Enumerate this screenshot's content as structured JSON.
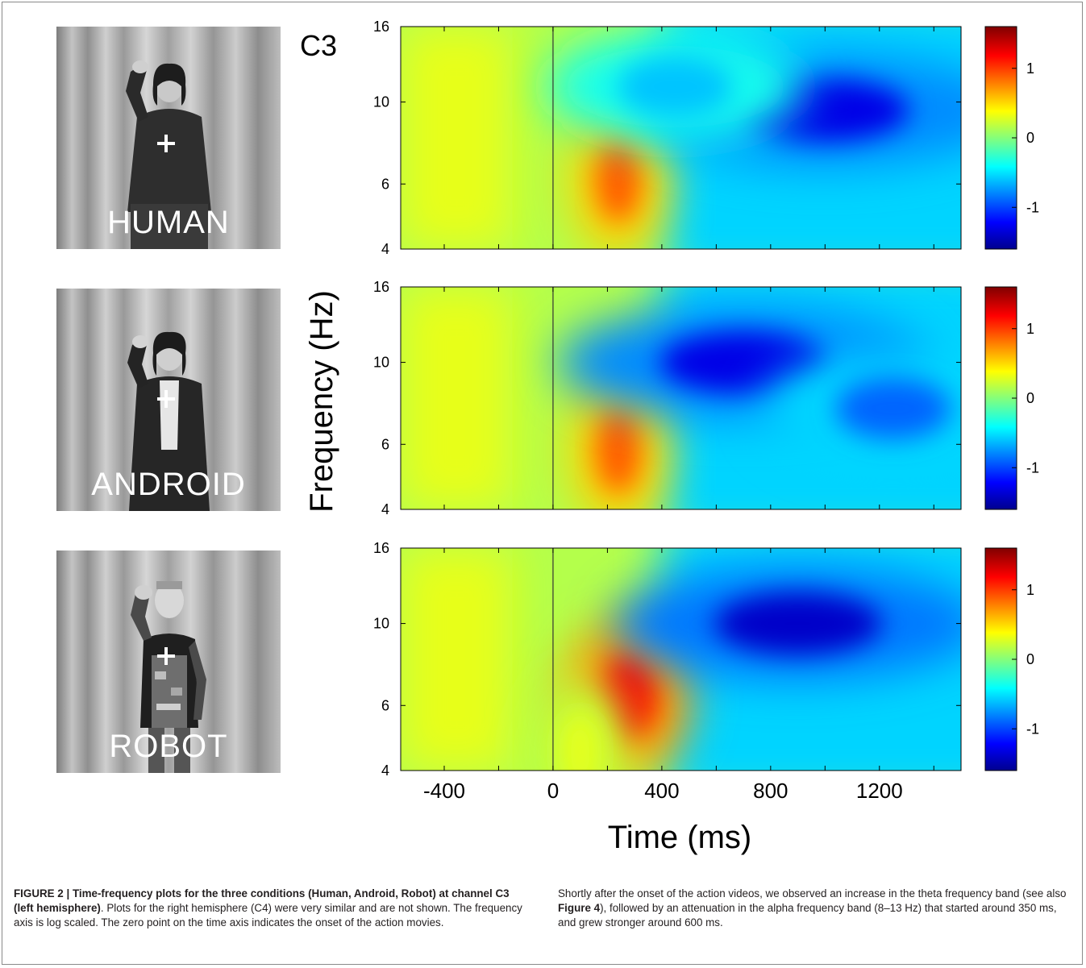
{
  "figure": {
    "channel_label": "C3",
    "panels": [
      {
        "photo_label": "HUMAN"
      },
      {
        "photo_label": "ANDROID"
      },
      {
        "photo_label": "ROBOT"
      }
    ],
    "caption_left": {
      "label": "FIGURE 2 | ",
      "title": "Time-frequency plots for the three conditions (Human, Android, Robot) at channel C3 (left hemisphere)",
      "text": ". Plots for the right hemisphere (C4) were very similar and are not shown. The frequency axis is log scaled. The zero point on the time axis indicates the onset of the action movies."
    },
    "caption_right": {
      "text1": "Shortly after the onset of the action videos, we observed an increase in the theta frequency band (see also ",
      "ref": "Figure 4",
      "text2": "), followed by an attenuation in the alpha frequency band (8–13 Hz) that started around 350 ms, and grew stronger around 600 ms."
    }
  },
  "chart_data": {
    "type": "heatmap",
    "xlabel": "Time (ms)",
    "ylabel": "Frequency (Hz)",
    "xlim": [
      -560,
      1500
    ],
    "ylim": [
      4,
      16
    ],
    "x_ticks": [
      -400,
      0,
      400,
      800,
      1200
    ],
    "x_tick_labels": [
      "-400",
      "0",
      "400",
      "800",
      "1200"
    ],
    "y_ticks": [
      4,
      6,
      10,
      16
    ],
    "y_tick_labels": [
      "4",
      "6",
      "10",
      "16"
    ],
    "y_scale": "log",
    "colorbar_ticks": [
      1,
      0,
      -1
    ],
    "colorbar_tick_labels": [
      "1",
      "0",
      "-1"
    ],
    "colorbar_range": [
      -1.6,
      1.6
    ],
    "colormap": [
      "#00008f",
      "#0000ff",
      "#00ffff",
      "#ffff00",
      "#ff0000",
      "#800000"
    ],
    "onset_marker_time": 0,
    "series": [
      {
        "name": "HUMAN",
        "features": [
          {
            "time": 240,
            "freq": 6.2,
            "value": 0.9
          },
          {
            "time": 1000,
            "freq": 9.5,
            "value": -1.3
          },
          {
            "time": 450,
            "freq": 11,
            "value": -0.6
          }
        ]
      },
      {
        "name": "ANDROID",
        "features": [
          {
            "time": 240,
            "freq": 5.8,
            "value": 0.9
          },
          {
            "time": 700,
            "freq": 10,
            "value": -1.3
          },
          {
            "time": 1250,
            "freq": 7.5,
            "value": -0.9
          }
        ]
      },
      {
        "name": "ROBOT",
        "features": [
          {
            "time": 270,
            "freq": 6.3,
            "value": 1.2
          },
          {
            "time": 900,
            "freq": 10,
            "value": -1.4
          },
          {
            "time": 100,
            "freq": 4.5,
            "value": 0.3
          }
        ]
      }
    ]
  }
}
